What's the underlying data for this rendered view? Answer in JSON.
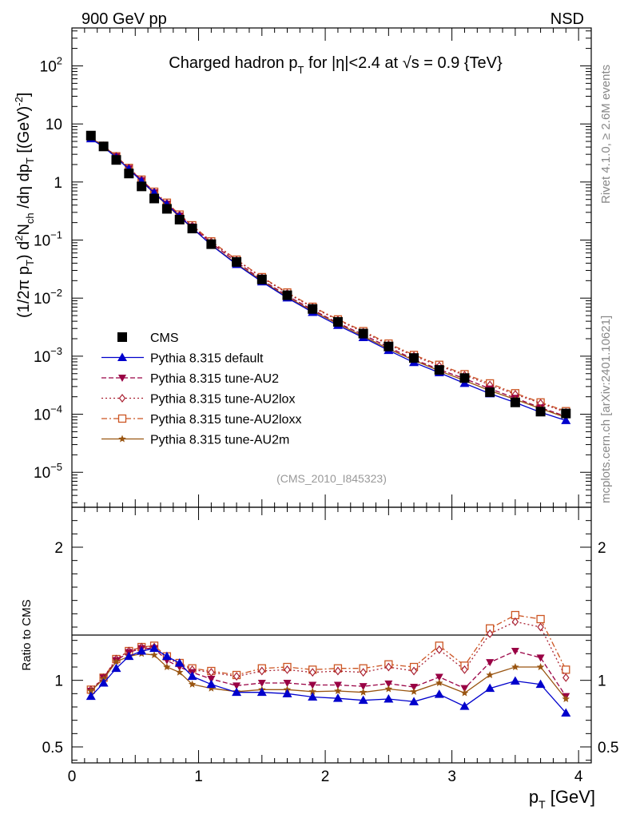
{
  "header": {
    "left": "900 GeV pp",
    "right": "NSD"
  },
  "side": {
    "top": "Rivet 4.1.0, ≥ 2.6M events",
    "bottom": "mcplots.cern.ch [arXiv:2401.10621]"
  },
  "main": {
    "title_pre": "Charged hadron p",
    "title_sub": "T",
    "title_post": " for |η|<2.4 at √s = 0.9 {TeV}",
    "analysis": "(CMS_2010_I845323)",
    "ylabel": {
      "p1": "(1/2π p",
      "s1": "T",
      "p2": ") d",
      "sup": "2",
      "p3": "N",
      "s2": "ch",
      "p4": " /dη  dp",
      "s3": "T",
      "p5": " [(GeV)",
      "sup2": "-2",
      "p6": "]"
    }
  },
  "ratio": {
    "ylabel": "Ratio to CMS"
  },
  "xaxis": {
    "label": "p",
    "label_sub": "T",
    "label_unit": " [GeV]"
  },
  "colors": {
    "CMS": "#000000",
    "default": "#0000cc",
    "AU2": "#990044",
    "AU2lox": "#aa2233",
    "AU2loxx": "#cc5522",
    "AU2m": "#995511"
  },
  "chart_data": {
    "type": "line",
    "title": "Charged hadron pT for |η|<2.4 at √s = 0.9 {TeV}",
    "xlabel": "pT [GeV]",
    "ylabel": "(1/2π pT) d2Nch /dη dpT [(GeV)-2]",
    "xlim": [
      0,
      4.1
    ],
    "ylim": [
      2.5e-06,
      450
    ],
    "yscale": "log",
    "ratio_ylim": [
      0.38,
      2.3
    ],
    "x": [
      0.15,
      0.25,
      0.35,
      0.45,
      0.55,
      0.65,
      0.75,
      0.85,
      0.95,
      1.1,
      1.3,
      1.5,
      1.7,
      1.9,
      2.1,
      2.3,
      2.5,
      2.7,
      2.9,
      3.1,
      3.3,
      3.5,
      3.7,
      3.9
    ],
    "x_ticks": [
      "0",
      "1",
      "2",
      "3",
      "4"
    ],
    "y_ticks": [
      {
        "v": 100,
        "base": "10",
        "exp": "2"
      },
      {
        "v": 10,
        "base": "10",
        "exp": ""
      },
      {
        "v": 1,
        "base": "1",
        "exp": ""
      },
      {
        "v": 0.1,
        "base": "10",
        "exp": "−1"
      },
      {
        "v": 0.01,
        "base": "10",
        "exp": "−2"
      },
      {
        "v": 0.001,
        "base": "10",
        "exp": "−3"
      },
      {
        "v": 0.0001,
        "base": "10",
        "exp": "−4"
      },
      {
        "v": 1e-05,
        "base": "10",
        "exp": "−5"
      }
    ],
    "ratio_ticks": [
      "0.5",
      "1",
      "2"
    ],
    "ratio_tick_values": [
      0.5,
      1,
      2
    ],
    "series": [
      {
        "key": "CMS",
        "name": "CMS",
        "marker": "square",
        "dash": "",
        "data": true,
        "values": [
          6.3,
          4.1,
          2.4,
          1.4,
          0.84,
          0.52,
          0.345,
          0.225,
          0.158,
          0.085,
          0.042,
          0.021,
          0.0112,
          0.0065,
          0.0039,
          0.00245,
          0.00147,
          0.00093,
          0.00058,
          0.00042,
          0.00024,
          0.00016,
          0.000111,
          0.000103
        ],
        "ratio": []
      },
      {
        "key": "default",
        "name": "Pythia 8.315 default",
        "marker": "triangle-up",
        "dash": "",
        "values": [
          5.56,
          4.02,
          2.62,
          1.66,
          1.03,
          0.65,
          0.41,
          0.255,
          0.163,
          0.082,
          0.038,
          0.0191,
          0.0101,
          0.0057,
          0.0034,
          0.0021,
          0.00126,
          0.00078,
          0.00052,
          0.00034,
          0.000226,
          0.000159,
          0.000108,
          7.8e-05
        ],
        "ratio": [
          0.88,
          0.98,
          1.09,
          1.18,
          1.22,
          1.24,
          1.18,
          1.13,
          1.03,
          0.97,
          0.91,
          0.91,
          0.9,
          0.875,
          0.865,
          0.85,
          0.86,
          0.84,
          0.895,
          0.805,
          0.94,
          0.995,
          0.97,
          0.755
        ]
      },
      {
        "key": "AU2",
        "name": "Pythia 8.315 tune-AU2",
        "marker": "triangle-down",
        "dash": "6,3",
        "values": [
          5.8,
          4.18,
          2.75,
          1.72,
          1.07,
          0.66,
          0.42,
          0.262,
          0.17,
          0.089,
          0.042,
          0.0206,
          0.011,
          0.0063,
          0.00375,
          0.00235,
          0.00143,
          0.00088,
          0.00059,
          0.00041,
          0.000275,
          0.00019,
          0.00013,
          9.2e-05
        ],
        "ratio": [
          0.92,
          1.02,
          1.15,
          1.21,
          1.24,
          1.24,
          1.15,
          1.1,
          1.06,
          1.01,
          0.96,
          0.98,
          0.98,
          0.965,
          0.965,
          0.955,
          0.975,
          0.95,
          1.025,
          0.94,
          1.135,
          1.22,
          1.17,
          0.88
        ]
      },
      {
        "key": "AU2lox",
        "name": "Pythia 8.315 tune-AU2lox",
        "marker": "diamond",
        "dash": "2,3",
        "values": [
          5.85,
          4.2,
          2.78,
          1.74,
          1.09,
          0.67,
          0.43,
          0.27,
          0.176,
          0.093,
          0.045,
          0.0225,
          0.0121,
          0.0069,
          0.0042,
          0.0026,
          0.00158,
          0.00101,
          0.00068,
          0.00047,
          0.00032,
          0.00022,
          0.000155,
          0.000108
        ],
        "ratio": [
          0.93,
          1.02,
          1.16,
          1.22,
          1.25,
          1.25,
          1.17,
          1.12,
          1.08,
          1.06,
          1.03,
          1.07,
          1.08,
          1.06,
          1.07,
          1.06,
          1.1,
          1.07,
          1.23,
          1.08,
          1.35,
          1.44,
          1.4,
          1.02
        ]
      },
      {
        "key": "AU2loxx",
        "name": "Pythia 8.315 tune-AU2loxx",
        "marker": "open-square",
        "dash": "7,3,2,3",
        "values": [
          5.85,
          4.2,
          2.78,
          1.75,
          1.1,
          0.68,
          0.44,
          0.275,
          0.18,
          0.095,
          0.046,
          0.023,
          0.0125,
          0.0071,
          0.0043,
          0.0027,
          0.00165,
          0.00105,
          0.00071,
          0.00049,
          0.00034,
          0.00023,
          0.00016,
          0.000113
        ],
        "ratio": [
          0.93,
          1.02,
          1.16,
          1.22,
          1.25,
          1.26,
          1.18,
          1.13,
          1.09,
          1.07,
          1.04,
          1.09,
          1.1,
          1.08,
          1.09,
          1.09,
          1.12,
          1.1,
          1.26,
          1.11,
          1.39,
          1.49,
          1.46,
          1.08
        ]
      },
      {
        "key": "AU2m",
        "name": "Pythia 8.315 tune-AU2m",
        "marker": "star",
        "dash": "",
        "values": [
          5.75,
          4.15,
          2.7,
          1.68,
          1.03,
          0.64,
          0.4,
          0.25,
          0.16,
          0.083,
          0.039,
          0.0198,
          0.0104,
          0.006,
          0.0036,
          0.0022,
          0.00134,
          0.00085,
          0.00056,
          0.00038,
          0.000255,
          0.00018,
          0.000125,
          8.8e-05
        ],
        "ratio": [
          0.92,
          1.01,
          1.14,
          1.18,
          1.2,
          1.19,
          1.1,
          1.06,
          0.97,
          0.94,
          0.915,
          0.93,
          0.93,
          0.915,
          0.92,
          0.91,
          0.935,
          0.915,
          0.98,
          0.905,
          1.04,
          1.1,
          1.1,
          0.86
        ]
      }
    ]
  }
}
